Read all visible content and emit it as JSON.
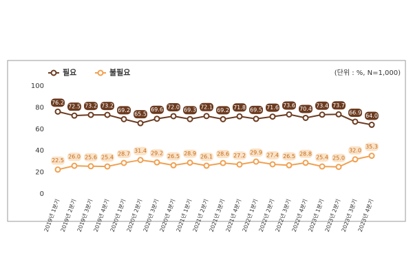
{
  "chart_data": {
    "type": "line",
    "unit_note": "(단위 : %, N=1,000)",
    "categories": [
      "2019년 1분기",
      "2019년 2분기",
      "2019년 3분기",
      "2019년 4분기",
      "2020년 1분기",
      "2020년 2분기",
      "2020년 3분기",
      "2020년 4분기",
      "2021년 1분기",
      "2021년 2분기",
      "2021년 3분기",
      "2021년 4분기",
      "2022년 1분기",
      "2022년 2분기",
      "2022년 3분기",
      "2022년 4분기",
      "2023년 1분기",
      "2023년 2분기",
      "2023년 3분기",
      "2023년 4분기"
    ],
    "series": [
      {
        "name": "필요",
        "color": "#6b3a1f",
        "values": [
          76.2,
          72.5,
          73.2,
          73.2,
          69.2,
          65.5,
          69.6,
          72.0,
          69.3,
          72.1,
          69.2,
          71.8,
          69.5,
          71.6,
          73.6,
          70.4,
          73.4,
          73.7,
          66.9,
          64.0
        ],
        "value_labels": [
          "76.2",
          "72.5",
          "73.2",
          "73.2",
          "69.2",
          "65.5",
          "69.6",
          "72.0",
          "69.3",
          "72.1",
          "69.2",
          "71.8",
          "69.5",
          "71.6",
          "73.6",
          "70.4",
          "73.4",
          "73.7",
          "66.9",
          "64.0"
        ]
      },
      {
        "name": "불필요",
        "color": "#f0a050",
        "values": [
          22.5,
          26.0,
          25.6,
          25.4,
          28.7,
          31.4,
          29.2,
          26.5,
          28.9,
          26.1,
          28.6,
          27.2,
          29.9,
          27.4,
          26.5,
          28.8,
          25.4,
          25.0,
          32.0,
          35.3
        ],
        "value_labels": [
          "22.5",
          "26.0",
          "25.6",
          "25.4",
          "28.7",
          "31.4",
          "29.2",
          "26.5",
          "28.9",
          "26.1",
          "28.6",
          "27.2",
          "29.9",
          "27.4",
          "26.5",
          "28.8",
          "25.4",
          "25.0",
          "32.0",
          "35.3"
        ]
      }
    ],
    "ylim": [
      0,
      100
    ],
    "yticks": [
      0,
      20,
      40,
      60,
      80,
      100
    ],
    "grid": false
  }
}
